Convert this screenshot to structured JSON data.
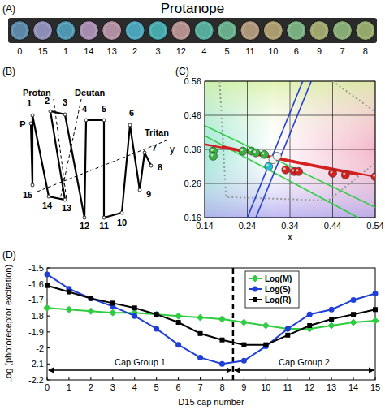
{
  "panel_labels": [
    "(A)",
    "(B)",
    "(C)",
    "(D)"
  ],
  "caps": {
    "title": "Protanope",
    "order": [
      0,
      15,
      1,
      14,
      13,
      2,
      3,
      12,
      4,
      5,
      11,
      10,
      6,
      9,
      7,
      8
    ],
    "colors": [
      "#5a87a6",
      "#8d8cb6",
      "#4e96b0",
      "#a68db0",
      "#b08ea0",
      "#49a2b8",
      "#45a8aa",
      "#b28f8c",
      "#55ab9a",
      "#67ad8a",
      "#ad957a",
      "#a99b6e",
      "#78ad80",
      "#9da46c",
      "#86ab74",
      "#94a86c"
    ]
  },
  "diagram": {
    "labels": [
      "P",
      "1",
      "2",
      "3",
      "4",
      "5",
      "6",
      "7",
      "8",
      "9",
      "10",
      "11",
      "12",
      "13",
      "14",
      "15"
    ],
    "lines": [
      "Protan",
      "Deutan",
      "Tritan"
    ]
  },
  "chart_data": [
    {
      "type": "scatter",
      "x_label": "x",
      "y_label": "y",
      "xlim": [
        0.14,
        0.54
      ],
      "ylim": [
        0.16,
        0.56
      ],
      "xticks": [
        0.14,
        0.24,
        0.34,
        0.44,
        0.54
      ],
      "yticks": [
        0.16,
        0.26,
        0.36,
        0.46,
        0.56
      ],
      "grid": true,
      "series": [
        {
          "type": "line",
          "color": "#999999",
          "line_style": "dotted",
          "x": [
            0.175,
            0.19,
            0.43,
            0.54
          ],
          "y": [
            0.56,
            0.22,
            0.21,
            0.32
          ]
        },
        {
          "type": "line",
          "color": "#999999",
          "line_style": "dotted",
          "x": [
            0.44,
            0.54
          ],
          "y": [
            0.56,
            0.47
          ]
        },
        {
          "type": "line",
          "color": "#2ecc40",
          "x": [
            0.14,
            0.54
          ],
          "y": [
            0.43,
            0.19
          ]
        },
        {
          "type": "line",
          "color": "#2ecc40",
          "x": [
            0.14,
            0.5
          ],
          "y": [
            0.4,
            0.16
          ]
        },
        {
          "type": "line",
          "color": "#2240d0",
          "x": [
            0.24,
            0.37
          ],
          "y": [
            0.16,
            0.56
          ]
        },
        {
          "type": "line",
          "color": "#2240d0",
          "x": [
            0.26,
            0.39
          ],
          "y": [
            0.16,
            0.56
          ]
        },
        {
          "type": "line",
          "color": "#d42020",
          "x": [
            0.14,
            0.54
          ],
          "y": [
            0.375,
            0.28
          ]
        },
        {
          "type": "line",
          "color": "#d42020",
          "x": [
            0.18,
            0.5
          ],
          "y": [
            0.37,
            0.285
          ]
        },
        {
          "type": "line",
          "color": "#d42020",
          "x": [
            0.24,
            0.44
          ],
          "y": [
            0.35,
            0.3
          ]
        },
        {
          "type": "scatter",
          "marker": "sphere",
          "x": [
            0.16,
            0.16,
            0.23,
            0.25,
            0.26,
            0.28,
            0.29,
            0.3,
            0.31,
            0.33,
            0.35,
            0.36,
            0.44,
            0.47,
            0.54
          ],
          "y": [
            0.355,
            0.34,
            0.355,
            0.355,
            0.35,
            0.345,
            0.31,
            0.33,
            0.34,
            0.3,
            0.295,
            0.295,
            0.29,
            0.285,
            0.28
          ],
          "colors": [
            "#3cb043",
            "#3cb043",
            "#3cb043",
            "#3cb043",
            "#3cb043",
            "#3cb043",
            "#20c0d0",
            "#f0f0f0",
            "#f0f0f0",
            "#d42020",
            "#d42020",
            "#d42020",
            "#d42020",
            "#d42020",
            "#d42020"
          ]
        }
      ]
    },
    {
      "type": "line",
      "x_label": "D15 cap number",
      "y_label": "Log (photoreceptor excitation)",
      "x": [
        0,
        1,
        2,
        3,
        4,
        5,
        6,
        7,
        8,
        9,
        10,
        11,
        12,
        13,
        14,
        15
      ],
      "xlim": [
        0,
        15
      ],
      "ylim": [
        -2.2,
        -1.5
      ],
      "xticks": [
        0,
        1,
        2,
        3,
        4,
        5,
        6,
        7,
        8,
        9,
        10,
        11,
        12,
        13,
        14,
        15
      ],
      "yticks": [
        -1.5,
        -1.6,
        -1.7,
        -1.8,
        -1.9,
        -2,
        -2.1,
        -2.2
      ],
      "legend": "top",
      "series": [
        {
          "name": "Log(M)",
          "color": "#2ecc40",
          "marker": "diamond",
          "values": [
            -1.75,
            -1.76,
            -1.77,
            -1.78,
            -1.78,
            -1.79,
            -1.8,
            -1.81,
            -1.82,
            -1.84,
            -1.86,
            -1.88,
            -1.88,
            -1.86,
            -1.84,
            -1.83
          ]
        },
        {
          "name": "Log(S)",
          "color": "#1f3fd6",
          "marker": "circle",
          "values": [
            -1.54,
            -1.63,
            -1.69,
            -1.74,
            -1.8,
            -1.88,
            -1.98,
            -2.06,
            -2.1,
            -2.08,
            -1.99,
            -1.88,
            -1.79,
            -1.76,
            -1.7,
            -1.66
          ]
        },
        {
          "name": "Log(R)",
          "color": "#000000",
          "marker": "square",
          "values": [
            -1.61,
            -1.65,
            -1.69,
            -1.72,
            -1.75,
            -1.79,
            -1.84,
            -1.91,
            -1.95,
            -1.98,
            -1.98,
            -1.92,
            -1.86,
            -1.82,
            -1.79,
            -1.76
          ]
        }
      ],
      "divider": 8.5,
      "annotations": [
        {
          "text": "Cap Group 1",
          "x": [
            0,
            8.5
          ]
        },
        {
          "text": "Cap Group 2",
          "x": [
            8.5,
            15
          ]
        }
      ]
    }
  ]
}
